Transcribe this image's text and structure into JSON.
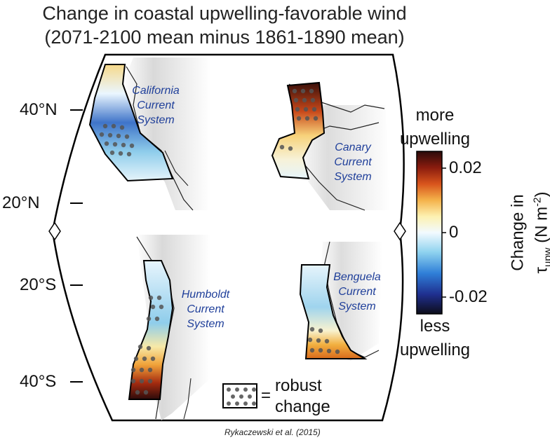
{
  "title": {
    "line1": "Change in coastal upwelling-favorable wind",
    "line2": "(2071-2100 mean minus 1861-1890 mean)"
  },
  "latitudes": {
    "n40": "40°N",
    "n20": "20°N",
    "s20": "20°S",
    "s40": "40°S"
  },
  "systems": {
    "california": [
      "California",
      "Current",
      "System"
    ],
    "canary": [
      "Canary",
      "Current",
      "System"
    ],
    "humboldt": [
      "Humboldt",
      "Current",
      "System"
    ],
    "benguela": [
      "Benguela",
      "Current",
      "System"
    ]
  },
  "colorbar": {
    "top_label": [
      "more",
      "upwelling"
    ],
    "bottom_label": [
      "less",
      "upwelling"
    ],
    "ticks": [
      "0.02",
      "0",
      "-0.02"
    ],
    "range": [
      -0.025,
      0.025
    ],
    "unit_line1": "Change in",
    "unit_symbol": "τ",
    "unit_subscript": "upw",
    "unit_rest_open": " (N m",
    "unit_superscript": "-2",
    "unit_rest_close": ")",
    "colors": [
      "#0d0d1a",
      "#1f2f8f",
      "#2f7fd8",
      "#8fd3ef",
      "#f2faff",
      "#fdf1b0",
      "#f4b24a",
      "#d8541c",
      "#8a1c0e",
      "#2b0a0a"
    ]
  },
  "legend": {
    "line1": "robust",
    "line2": "change",
    "equals": "="
  },
  "citation": "Rykaczewski et al. (2015)"
}
